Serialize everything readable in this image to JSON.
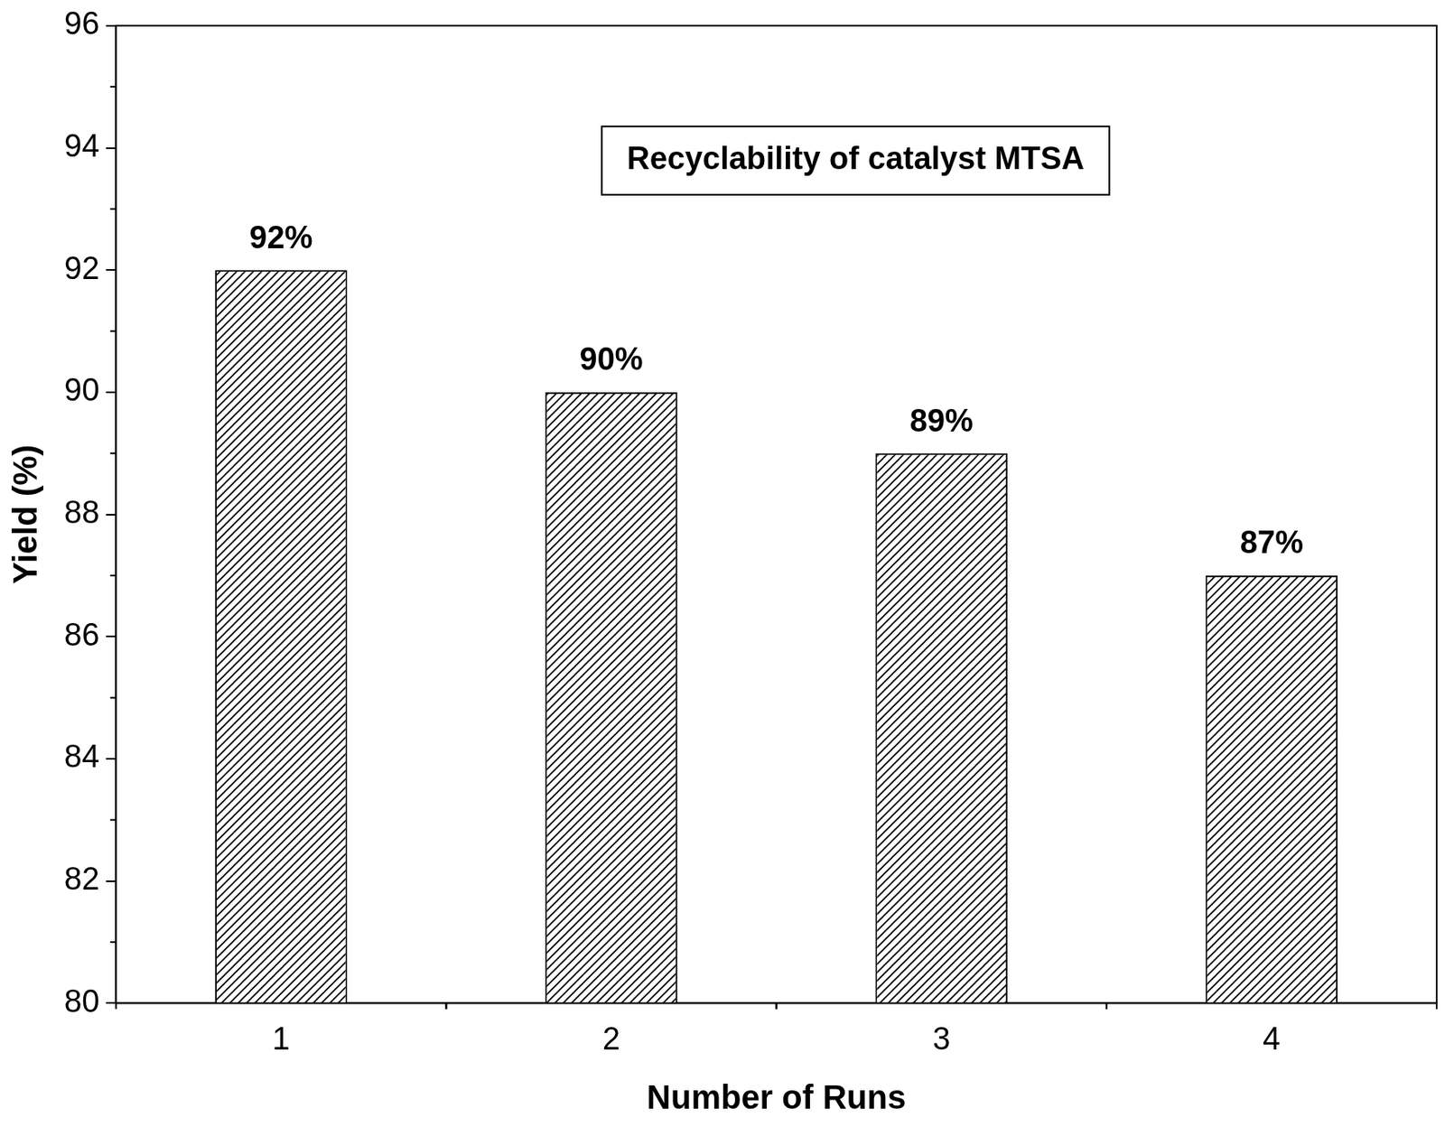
{
  "chart_data": {
    "type": "bar",
    "annotation": "Recyclability of catalyst MTSA",
    "x_label": "Number of Runs",
    "y_label": "Yield (%)",
    "categories": [
      "1",
      "2",
      "3",
      "4"
    ],
    "values": [
      92,
      90,
      89,
      87
    ],
    "value_labels": [
      "92%",
      "90%",
      "89%",
      "87%"
    ],
    "data_labels": true,
    "color": "#000000",
    "ylim": [
      80,
      96
    ],
    "yticks": [
      80,
      82,
      84,
      86,
      88,
      90,
      92,
      94,
      96
    ],
    "grid": false
  }
}
